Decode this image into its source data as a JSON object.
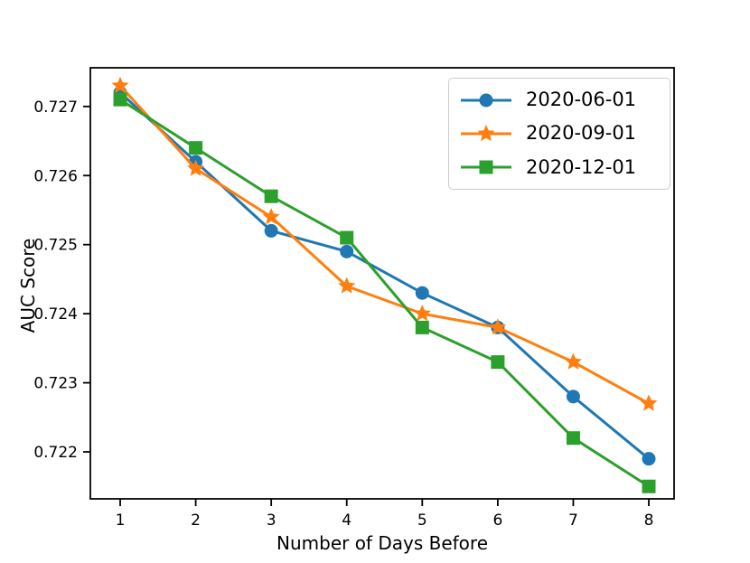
{
  "figure": {
    "background": "#ffffff"
  },
  "chart_data": {
    "type": "line",
    "title": "",
    "xlabel": "Number of Days Before",
    "ylabel": "AUC Score",
    "x": [
      1,
      2,
      3,
      4,
      5,
      6,
      7,
      8
    ],
    "xticks": [
      "1",
      "2",
      "3",
      "4",
      "5",
      "6",
      "7",
      "8"
    ],
    "yticks": [
      0.722,
      0.723,
      0.724,
      0.725,
      0.726,
      0.727
    ],
    "xlim": [
      0.605,
      8.335
    ],
    "ylim": [
      0.72132,
      0.72756
    ],
    "grid": false,
    "legend_position": "upper-right",
    "series": [
      {
        "name": "2020-06-01",
        "color": "#1f77b4",
        "marker": "circle",
        "values": [
          0.7272,
          0.7262,
          0.7252,
          0.7249,
          0.7243,
          0.7238,
          0.7228,
          0.7219
        ]
      },
      {
        "name": "2020-09-01",
        "color": "#ff7f0e",
        "marker": "star",
        "values": [
          0.7273,
          0.7261,
          0.7254,
          0.7244,
          0.724,
          0.7238,
          0.7233,
          0.7227
        ]
      },
      {
        "name": "2020-12-01",
        "color": "#2ca02c",
        "marker": "square",
        "values": [
          0.7271,
          0.7264,
          0.7257,
          0.7251,
          0.7238,
          0.7233,
          0.7222,
          0.7215
        ]
      }
    ]
  }
}
